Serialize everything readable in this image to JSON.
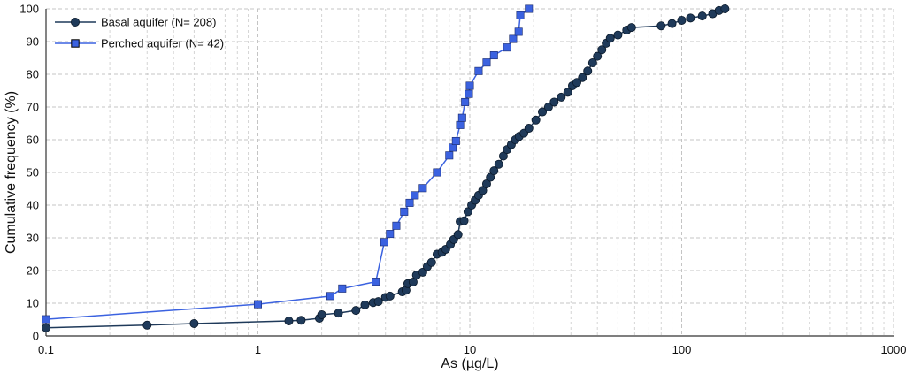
{
  "chart_data": {
    "type": "scatter",
    "xlabel": "As (µg/L)",
    "ylabel": "Cumulative frequency (%)",
    "xscale": "log",
    "xlim": [
      0.1,
      1000
    ],
    "ylim": [
      0,
      100
    ],
    "x_ticks": [
      0.1,
      1,
      10,
      100,
      1000
    ],
    "x_tick_labels": [
      "0.1",
      "1",
      "10",
      "100",
      "1000"
    ],
    "y_ticks": [
      0,
      10,
      20,
      30,
      40,
      50,
      60,
      70,
      80,
      90,
      100
    ],
    "grid": true,
    "legend_position": "top-left",
    "series": [
      {
        "name": "Basal aquifer (N= 208)",
        "color": "#1f3a5a",
        "marker": "circle",
        "points": [
          [
            0.1,
            2.5
          ],
          [
            0.3,
            3.3
          ],
          [
            0.5,
            3.8
          ],
          [
            1.4,
            4.6
          ],
          [
            1.6,
            4.8
          ],
          [
            1.95,
            5.4
          ],
          [
            2.0,
            6.5
          ],
          [
            2.4,
            7.0
          ],
          [
            2.9,
            7.8
          ],
          [
            3.2,
            9.5
          ],
          [
            3.5,
            10.2
          ],
          [
            3.7,
            10.5
          ],
          [
            4.0,
            11.8
          ],
          [
            4.2,
            12.2
          ],
          [
            4.8,
            13.5
          ],
          [
            5.0,
            14.0
          ],
          [
            5.1,
            16.0
          ],
          [
            5.4,
            16.5
          ],
          [
            5.6,
            18.6
          ],
          [
            6.0,
            19.5
          ],
          [
            6.3,
            21.2
          ],
          [
            6.6,
            22.5
          ],
          [
            7.0,
            25.0
          ],
          [
            7.4,
            25.6
          ],
          [
            7.7,
            26.5
          ],
          [
            8.1,
            28.0
          ],
          [
            8.4,
            29.5
          ],
          [
            8.8,
            31.0
          ],
          [
            9.0,
            35.0
          ],
          [
            9.4,
            35.2
          ],
          [
            9.8,
            38.0
          ],
          [
            10.2,
            40.0
          ],
          [
            10.6,
            41.5
          ],
          [
            11.0,
            43.0
          ],
          [
            11.5,
            44.5
          ],
          [
            12.0,
            46.5
          ],
          [
            12.5,
            48.5
          ],
          [
            13.0,
            50.5
          ],
          [
            13.7,
            52.5
          ],
          [
            14.4,
            55.0
          ],
          [
            15.0,
            57.0
          ],
          [
            15.7,
            58.5
          ],
          [
            16.4,
            60.0
          ],
          [
            17.1,
            61.0
          ],
          [
            18.0,
            62.0
          ],
          [
            19.0,
            63.5
          ],
          [
            20.5,
            66.0
          ],
          [
            22.0,
            68.5
          ],
          [
            23.5,
            70.0
          ],
          [
            25.0,
            71.5
          ],
          [
            27.0,
            73.0
          ],
          [
            29.0,
            74.5
          ],
          [
            30.5,
            76.5
          ],
          [
            32.0,
            77.5
          ],
          [
            34.0,
            79.0
          ],
          [
            36.0,
            81.0
          ],
          [
            38.0,
            83.5
          ],
          [
            40.0,
            85.5
          ],
          [
            42.0,
            87.5
          ],
          [
            44.0,
            89.5
          ],
          [
            46.0,
            91.0
          ],
          [
            50.0,
            92.0
          ],
          [
            55.0,
            93.5
          ],
          [
            58.0,
            94.3
          ],
          [
            80.0,
            94.8
          ],
          [
            90.0,
            95.5
          ],
          [
            100.0,
            96.5
          ],
          [
            110.0,
            97.2
          ],
          [
            125.0,
            97.8
          ],
          [
            140.0,
            98.5
          ],
          [
            150.0,
            99.5
          ],
          [
            160.0,
            100.0
          ]
        ]
      },
      {
        "name": "Perched aquifer (N= 42)",
        "color": "#3b62e0",
        "marker": "square",
        "points": [
          [
            0.1,
            5.1
          ],
          [
            1.0,
            9.7
          ],
          [
            2.2,
            12.2
          ],
          [
            2.5,
            14.5
          ],
          [
            3.6,
            16.6
          ],
          [
            3.95,
            28.7
          ],
          [
            4.2,
            31.2
          ],
          [
            4.5,
            33.7
          ],
          [
            4.9,
            38.0
          ],
          [
            5.2,
            40.7
          ],
          [
            5.5,
            43.0
          ],
          [
            6.0,
            45.2
          ],
          [
            7.0,
            50.0
          ],
          [
            8.0,
            55.2
          ],
          [
            8.3,
            57.6
          ],
          [
            8.6,
            59.6
          ],
          [
            9.0,
            64.5
          ],
          [
            9.2,
            66.7
          ],
          [
            9.5,
            71.5
          ],
          [
            9.9,
            74.0
          ],
          [
            10.0,
            76.5
          ],
          [
            11.0,
            81.0
          ],
          [
            12.0,
            83.6
          ],
          [
            13.0,
            85.8
          ],
          [
            15.0,
            88.2
          ],
          [
            16.0,
            90.8
          ],
          [
            17.0,
            93.0
          ],
          [
            17.3,
            98.0
          ],
          [
            19.0,
            100.0
          ]
        ]
      }
    ]
  }
}
